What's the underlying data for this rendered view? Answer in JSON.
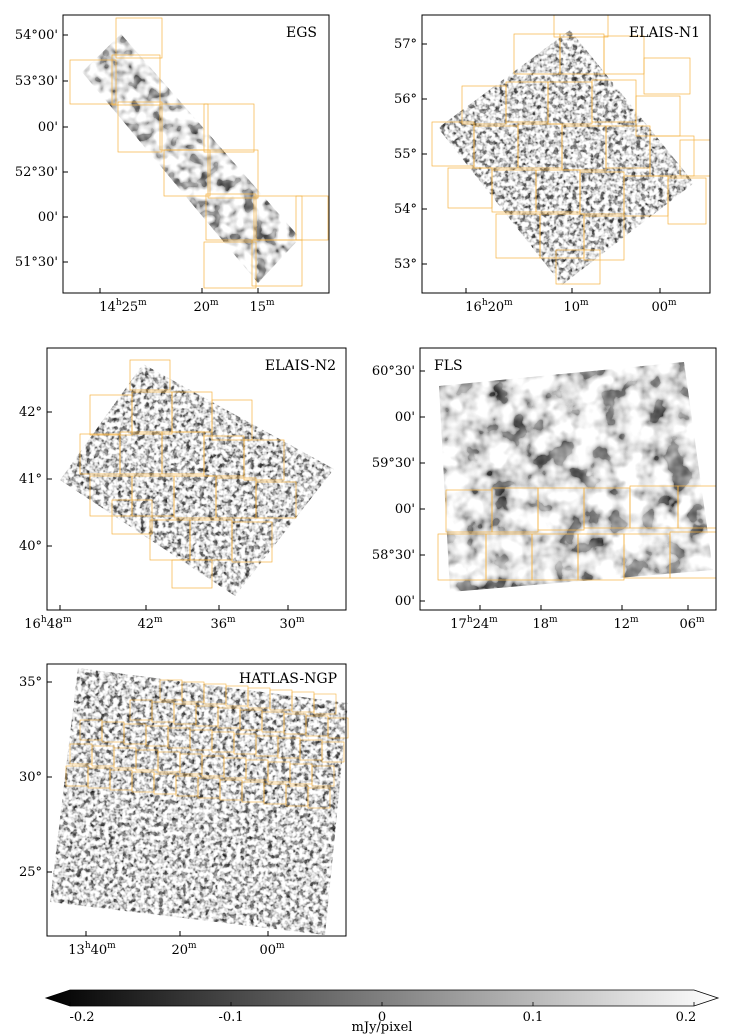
{
  "panels": [
    {
      "key": "egs",
      "title": "EGS",
      "y_ticks": [
        "54°00'",
        "53°30'",
        "00'",
        "52°30'",
        "00'",
        "51°30'"
      ],
      "x_ticks": [
        {
          "main": "14",
          "sup1": "h",
          "mid": "25",
          "sup2": "m"
        },
        {
          "main": "20",
          "sup2": "m"
        },
        {
          "main": "15",
          "sup2": "m"
        }
      ]
    },
    {
      "key": "elais_n1",
      "title": "ELAIS-N1",
      "y_ticks": [
        "57°",
        "56°",
        "55°",
        "54°",
        "53°"
      ],
      "x_ticks": [
        {
          "main": "16",
          "sup1": "h",
          "mid": "20",
          "sup2": "m"
        },
        {
          "main": "10",
          "sup2": "m"
        },
        {
          "main": "00",
          "sup2": "m"
        }
      ]
    },
    {
      "key": "elais_n2",
      "title": "ELAIS-N2",
      "y_ticks": [
        "42°",
        "41°",
        "40°"
      ],
      "x_ticks": [
        {
          "main": "16",
          "sup1": "h",
          "mid": "48",
          "sup2": "m"
        },
        {
          "main": "42",
          "sup2": "m"
        },
        {
          "main": "36",
          "sup2": "m"
        },
        {
          "main": "30",
          "sup2": "m"
        }
      ]
    },
    {
      "key": "fls",
      "title": "FLS",
      "y_ticks": [
        "60°30'",
        "00'",
        "59°30'",
        "00'",
        "58°30'",
        "00'"
      ],
      "x_ticks": [
        {
          "main": "17",
          "sup1": "h",
          "mid": "24",
          "sup2": "m"
        },
        {
          "main": "18",
          "sup2": "m"
        },
        {
          "main": "12",
          "sup2": "m"
        },
        {
          "main": "06",
          "sup2": "m"
        }
      ]
    },
    {
      "key": "hatlas_ngp",
      "title": "HATLAS-NGP",
      "y_ticks": [
        "35°",
        "30°",
        "25°"
      ],
      "x_ticks": [
        {
          "main": "13",
          "sup1": "h",
          "mid": "40",
          "sup2": "m"
        },
        {
          "main": "20",
          "sup2": "m"
        },
        {
          "main": "00",
          "sup2": "m"
        }
      ]
    }
  ],
  "colorbar": {
    "ticks": [
      "-0.2",
      "-0.1",
      "0",
      "0.1",
      "0.2"
    ],
    "label": "mJy/pixel",
    "range": [
      -0.2,
      0.2
    ],
    "colormap": "greyscale (black to white)"
  },
  "colors": {
    "tile_outline": "#f5b342",
    "map_dark": "#000000",
    "map_light": "#ffffff"
  }
}
